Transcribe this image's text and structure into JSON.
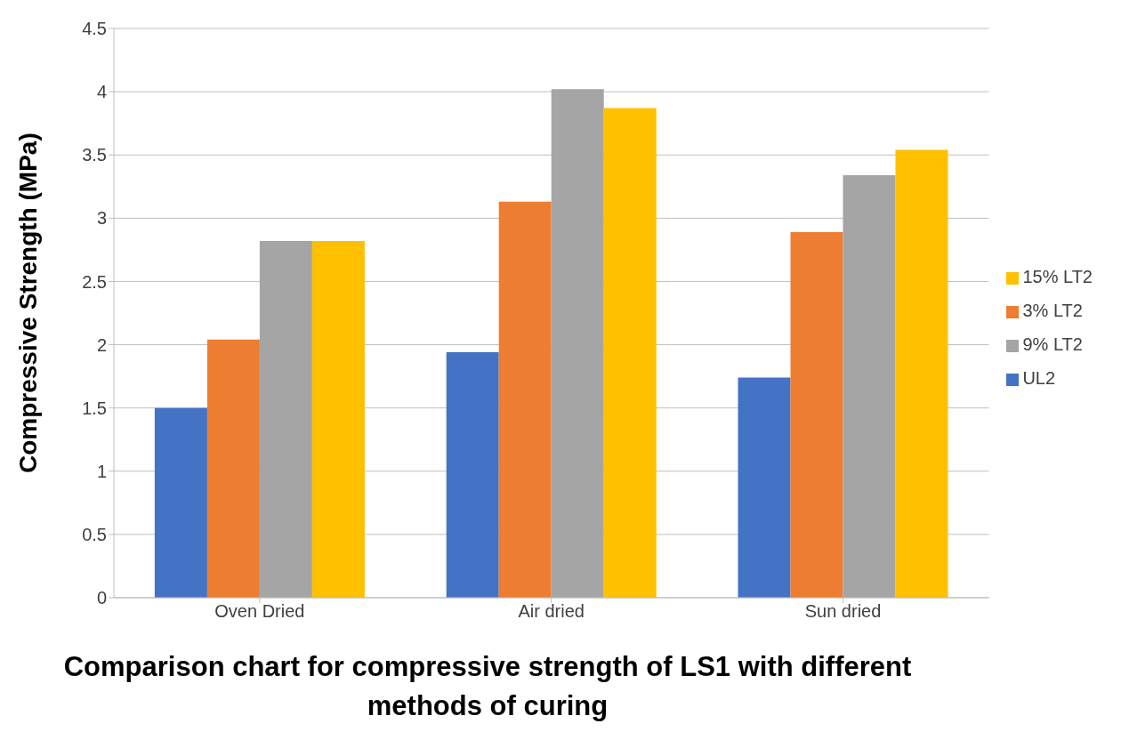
{
  "chart_data": {
    "type": "bar",
    "xlabel": "Comparison chart for compressive strength of LS1 with different methods of curing",
    "ylabel": "Compressive Strength (MPa)",
    "categories": [
      "Oven Dried",
      "Air dried",
      "Sun dried"
    ],
    "series": [
      {
        "name": "UL2",
        "color": "#4472c4",
        "values": [
          1.5,
          1.94,
          1.74
        ]
      },
      {
        "name": "3% LT2",
        "color": "#ed7d31",
        "values": [
          2.04,
          3.13,
          2.89
        ]
      },
      {
        "name": "9% LT2",
        "color": "#a5a5a5",
        "values": [
          2.82,
          4.02,
          3.34
        ]
      },
      {
        "name": "15% LT2",
        "color": "#ffc000",
        "values": [
          2.82,
          3.87,
          3.54
        ]
      }
    ],
    "ylim": [
      0,
      4.5
    ],
    "yticks": [
      0,
      0.5,
      1,
      1.5,
      2,
      2.5,
      3,
      3.5,
      4,
      4.5
    ],
    "grid": "y",
    "legend": "right"
  }
}
